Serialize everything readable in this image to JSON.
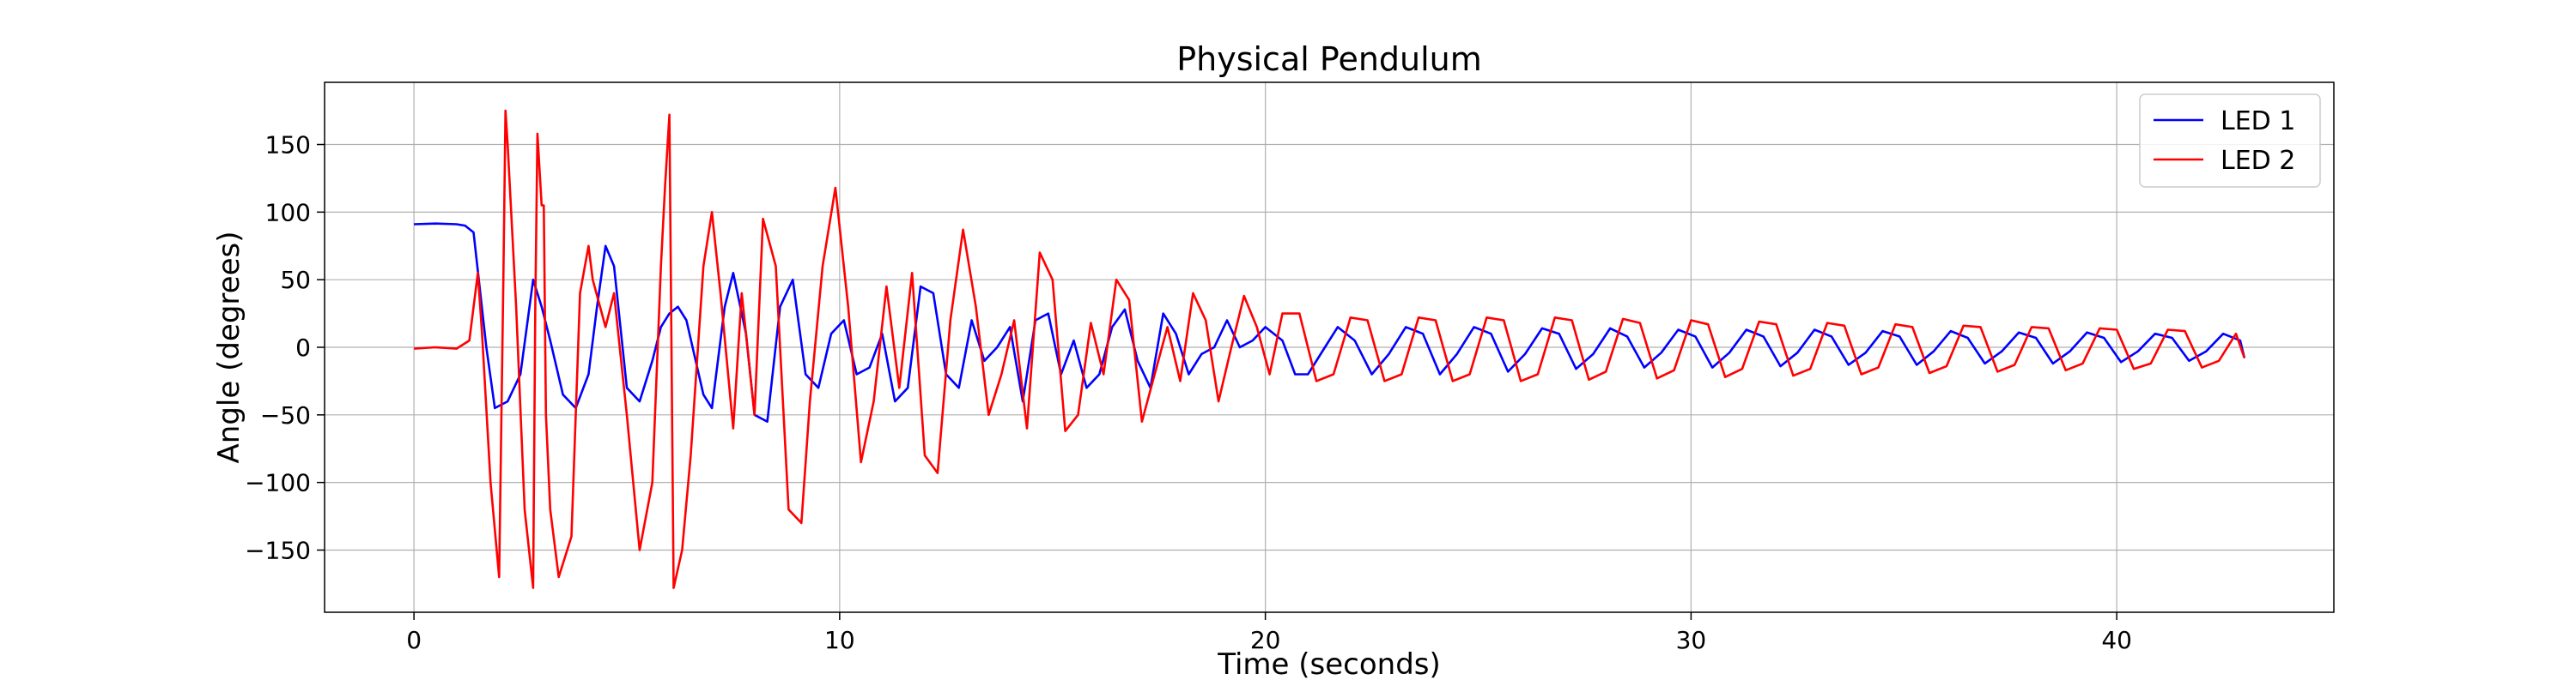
{
  "chart_data": {
    "type": "line",
    "title": "Physical Pendulum",
    "xlabel": "Time (seconds)",
    "ylabel": "Angle (degrees)",
    "xlim": [
      -2.1,
      45.1
    ],
    "ylim": [
      -196,
      196
    ],
    "xticks": [
      0,
      10,
      20,
      30,
      40
    ],
    "xtick_labels": [
      "0",
      "10",
      "20",
      "30",
      "40"
    ],
    "yticks": [
      -150,
      -100,
      -50,
      0,
      50,
      100,
      150
    ],
    "ytick_labels": [
      "−150",
      "−100",
      "−50",
      "0",
      "50",
      "100",
      "150"
    ],
    "grid": true,
    "legend": "top-right",
    "series": [
      {
        "name": "LED 1",
        "color": "#0000ff",
        "x": [
          0,
          0.5,
          1.0,
          1.2,
          1.4,
          1.7,
          1.9,
          2.2,
          2.5,
          2.8,
          3.0,
          3.2,
          3.5,
          3.8,
          4.1,
          4.3,
          4.5,
          4.7,
          5.0,
          5.3,
          5.6,
          5.8,
          6.0,
          6.2,
          6.4,
          6.8,
          7.0,
          7.3,
          7.5,
          7.8,
          8.0,
          8.3,
          8.6,
          8.9,
          9.2,
          9.5,
          9.8,
          10.1,
          10.4,
          10.7,
          11.0,
          11.3,
          11.6,
          11.9,
          12.2,
          12.5,
          12.8,
          13.1,
          13.4,
          13.7,
          14.0,
          14.3,
          14.6,
          14.9,
          15.2,
          15.5,
          15.8,
          16.1,
          16.4,
          16.7,
          17.0,
          17.3,
          17.6,
          17.9,
          18.2,
          18.5,
          18.8,
          19.1,
          19.4,
          19.7,
          20.0,
          20.4,
          20.7,
          21.0,
          21.4,
          21.7,
          22.1,
          22.5,
          22.9,
          23.3,
          23.7,
          24.1,
          24.5,
          24.9,
          25.3,
          25.7,
          26.1,
          26.5,
          26.9,
          27.3,
          27.7,
          28.1,
          28.5,
          28.9,
          29.3,
          29.7,
          30.1,
          30.5,
          30.9,
          31.3,
          31.7,
          32.1,
          32.5,
          32.9,
          33.3,
          33.7,
          34.1,
          34.5,
          34.9,
          35.3,
          35.7,
          36.1,
          36.5,
          36.9,
          37.3,
          37.7,
          38.1,
          38.5,
          38.9,
          39.3,
          39.7,
          40.1,
          40.5,
          40.9,
          41.3,
          41.7,
          42.1,
          42.5,
          42.9,
          43.0
        ],
        "y": [
          91,
          91.5,
          91,
          90,
          85,
          0,
          -45,
          -40,
          -20,
          50,
          30,
          5,
          -35,
          -45,
          -20,
          30,
          75,
          60,
          -30,
          -40,
          -10,
          15,
          25,
          30,
          20,
          -35,
          -45,
          30,
          55,
          10,
          -50,
          -55,
          30,
          50,
          -20,
          -30,
          10,
          20,
          -20,
          -15,
          10,
          -40,
          -30,
          45,
          40,
          -20,
          -30,
          20,
          -10,
          0,
          15,
          -40,
          20,
          25,
          -20,
          5,
          -30,
          -20,
          15,
          28,
          -10,
          -30,
          25,
          10,
          -20,
          -5,
          0,
          20,
          0,
          5,
          15,
          5,
          -20,
          -20,
          0,
          15,
          5,
          -20,
          -5,
          15,
          10,
          -20,
          -5,
          15,
          10,
          -18,
          -5,
          14,
          10,
          -16,
          -5,
          14,
          8,
          -15,
          -4,
          13,
          8,
          -15,
          -4,
          13,
          8,
          -14,
          -4,
          13,
          8,
          -13,
          -4,
          12,
          8,
          -13,
          -3,
          12,
          7,
          -12,
          -3,
          11,
          7,
          -12,
          -3,
          11,
          7,
          -11,
          -3,
          10,
          7,
          -10,
          -3,
          10,
          5,
          -8
        ]
      },
      {
        "name": "LED 2",
        "color": "#ff0000",
        "x": [
          0,
          0.5,
          1.0,
          1.3,
          1.5,
          1.6,
          1.8,
          2.0,
          2.1,
          2.15,
          2.2,
          2.4,
          2.6,
          2.8,
          2.85,
          2.9,
          3.0,
          3.05,
          3.1,
          3.2,
          3.4,
          3.7,
          3.9,
          4.1,
          4.2,
          4.5,
          4.7,
          5.0,
          5.3,
          5.6,
          5.8,
          5.9,
          6.0,
          6.05,
          6.1,
          6.3,
          6.5,
          6.8,
          7.0,
          7.2,
          7.5,
          7.7,
          8.0,
          8.2,
          8.5,
          8.8,
          9.1,
          9.3,
          9.6,
          9.9,
          10.2,
          10.5,
          10.8,
          11.1,
          11.4,
          11.7,
          12.0,
          12.3,
          12.6,
          12.9,
          13.2,
          13.5,
          13.8,
          14.1,
          14.4,
          14.7,
          15.0,
          15.3,
          15.6,
          15.9,
          16.2,
          16.5,
          16.8,
          17.1,
          17.4,
          17.7,
          18.0,
          18.3,
          18.6,
          18.9,
          19.2,
          19.5,
          19.8,
          20.1,
          20.4,
          20.8,
          21.2,
          21.6,
          22.0,
          22.4,
          22.8,
          23.2,
          23.6,
          24.0,
          24.4,
          24.8,
          25.2,
          25.6,
          26.0,
          26.4,
          26.8,
          27.2,
          27.6,
          28.0,
          28.4,
          28.8,
          29.2,
          29.6,
          30.0,
          30.4,
          30.8,
          31.2,
          31.6,
          32.0,
          32.4,
          32.8,
          33.2,
          33.6,
          34.0,
          34.4,
          34.8,
          35.2,
          35.6,
          36.0,
          36.4,
          36.8,
          37.2,
          37.6,
          38.0,
          38.4,
          38.8,
          39.2,
          39.6,
          40.0,
          40.4,
          40.8,
          41.2,
          41.6,
          42.0,
          42.4,
          42.8,
          43.0
        ],
        "y": [
          -1,
          0,
          -1,
          5,
          55,
          10,
          -100,
          -170,
          50,
          175,
          150,
          30,
          -120,
          -178,
          30,
          158,
          105,
          105,
          -50,
          -120,
          -170,
          -140,
          40,
          75,
          50,
          15,
          40,
          -50,
          -150,
          -100,
          60,
          120,
          172,
          0,
          -178,
          -150,
          -80,
          60,
          100,
          40,
          -60,
          40,
          -50,
          95,
          60,
          -120,
          -130,
          -40,
          60,
          118,
          30,
          -85,
          -40,
          45,
          -30,
          55,
          -80,
          -93,
          20,
          87,
          30,
          -50,
          -20,
          20,
          -60,
          70,
          50,
          -62,
          -50,
          18,
          -20,
          50,
          35,
          -55,
          -20,
          15,
          -25,
          40,
          20,
          -40,
          0,
          38,
          15,
          -20,
          25,
          25,
          -25,
          -20,
          22,
          20,
          -25,
          -20,
          22,
          20,
          -25,
          -20,
          22,
          20,
          -25,
          -20,
          22,
          20,
          -24,
          -18,
          21,
          18,
          -23,
          -17,
          20,
          17,
          -22,
          -16,
          19,
          17,
          -21,
          -16,
          18,
          16,
          -20,
          -15,
          17,
          15,
          -19,
          -14,
          16,
          15,
          -18,
          -13,
          15,
          14,
          -17,
          -12,
          14,
          13,
          -16,
          -12,
          13,
          12,
          -15,
          -10,
          10,
          -8
        ]
      }
    ]
  }
}
